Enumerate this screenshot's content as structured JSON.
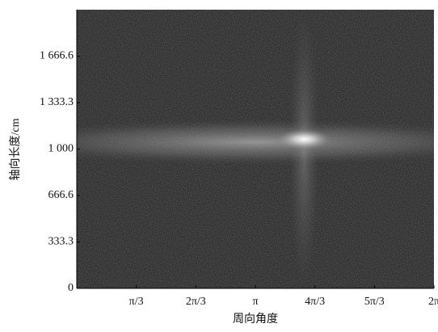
{
  "chart_data": {
    "type": "heatmap",
    "xlabel": "周向角度",
    "ylabel": "轴向长度/cm",
    "xlim": [
      0,
      6.2832
    ],
    "ylim": [
      0,
      2000
    ],
    "xticks": [
      {
        "value": 1.0472,
        "label": "π/3"
      },
      {
        "value": 2.0944,
        "label": "2π/3"
      },
      {
        "value": 3.1416,
        "label": "π"
      },
      {
        "value": 4.1888,
        "label": "4π/3"
      },
      {
        "value": 5.236,
        "label": "5π/3"
      },
      {
        "value": 6.2832,
        "label": "2π"
      }
    ],
    "yticks": [
      0,
      333.3,
      666.6,
      {
        "value": 1000,
        "label": "1 000"
      },
      {
        "value": 1333.3,
        "label": "1 333.3"
      },
      {
        "value": 1666.6,
        "label": "1 666.6"
      }
    ],
    "band_y": 1050,
    "peak": {
      "x": 4.0,
      "y": 1070
    }
  }
}
